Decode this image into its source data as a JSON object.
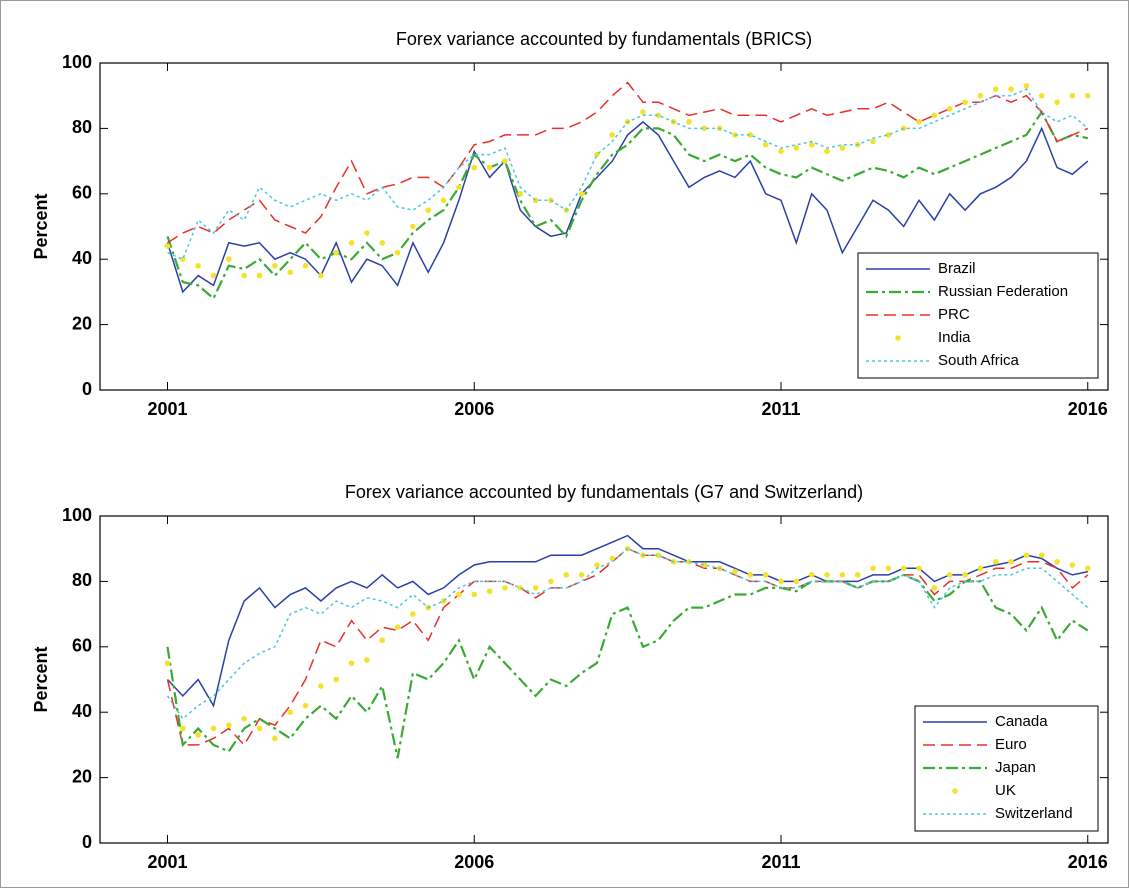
{
  "chart_data": [
    {
      "type": "line",
      "title": "Forex variance accounted by fundamentals (BRICS)",
      "ylabel": "Percent",
      "x": [
        2001,
        2001.25,
        2001.5,
        2001.75,
        2002,
        2002.25,
        2002.5,
        2002.75,
        2003,
        2003.25,
        2003.5,
        2003.75,
        2004,
        2004.25,
        2004.5,
        2004.75,
        2005,
        2005.25,
        2005.5,
        2005.75,
        2006,
        2006.25,
        2006.5,
        2006.75,
        2007,
        2007.25,
        2007.5,
        2007.75,
        2008,
        2008.25,
        2008.5,
        2008.75,
        2009,
        2009.25,
        2009.5,
        2009.75,
        2010,
        2010.25,
        2010.5,
        2010.75,
        2011,
        2011.25,
        2011.5,
        2011.75,
        2012,
        2012.25,
        2012.5,
        2012.75,
        2013,
        2013.25,
        2013.5,
        2013.75,
        2014,
        2014.25,
        2014.5,
        2014.75,
        2015,
        2015.25,
        2015.5,
        2015.75,
        2016
      ],
      "xlim": [
        1999.9,
        2016.33
      ],
      "xticks": [
        2001,
        2006,
        2011,
        2016
      ],
      "ylim": [
        0,
        100
      ],
      "yticks": [
        0,
        20,
        40,
        60,
        80,
        100
      ],
      "legend": "lower right",
      "series": [
        {
          "name": "Brazil",
          "color": "#2b3fa8",
          "linestyle": "solid",
          "values": [
            45,
            30,
            35,
            32,
            45,
            44,
            45,
            40,
            42,
            40,
            35,
            45,
            33,
            40,
            38,
            32,
            45,
            36,
            45,
            58,
            73,
            65,
            70,
            55,
            50,
            47,
            48,
            60,
            65,
            70,
            78,
            82,
            78,
            70,
            62,
            65,
            67,
            65,
            70,
            60,
            58,
            45,
            60,
            55,
            42,
            50,
            58,
            55,
            50,
            58,
            52,
            60,
            55,
            60,
            62,
            65,
            70,
            80,
            68,
            66,
            70
          ]
        },
        {
          "name": "Russian Federation",
          "color": "#3aaa35",
          "linestyle": "dashdot",
          "values": [
            47,
            33,
            32,
            28,
            38,
            37,
            40,
            35,
            40,
            45,
            40,
            42,
            40,
            45,
            40,
            42,
            48,
            52,
            55,
            62,
            72,
            68,
            70,
            58,
            50,
            52,
            47,
            58,
            66,
            72,
            75,
            80,
            80,
            78,
            72,
            70,
            72,
            70,
            72,
            68,
            66,
            65,
            68,
            66,
            64,
            66,
            68,
            67,
            65,
            68,
            66,
            68,
            70,
            72,
            74,
            76,
            78,
            85,
            76,
            78,
            77
          ]
        },
        {
          "name": "PRC",
          "color": "#e8302a",
          "linestyle": "dashed",
          "values": [
            45,
            48,
            50,
            48,
            52,
            55,
            58,
            52,
            50,
            48,
            53,
            62,
            70,
            60,
            62,
            63,
            65,
            65,
            62,
            68,
            75,
            76,
            78,
            78,
            78,
            80,
            80,
            82,
            85,
            90,
            94,
            88,
            88,
            86,
            84,
            85,
            86,
            84,
            84,
            84,
            82,
            84,
            86,
            84,
            85,
            86,
            86,
            88,
            85,
            82,
            84,
            86,
            88,
            88,
            90,
            88,
            90,
            85,
            76,
            78,
            80
          ]
        },
        {
          "name": "India",
          "color": "#f2e32a",
          "linestyle": "none",
          "values": [
            44,
            40,
            38,
            35,
            40,
            35,
            35,
            38,
            36,
            38,
            35,
            42,
            45,
            48,
            45,
            42,
            50,
            55,
            58,
            62,
            68,
            68,
            70,
            60,
            58,
            58,
            55,
            60,
            72,
            78,
            82,
            85,
            84,
            82,
            82,
            80,
            80,
            78,
            78,
            75,
            73,
            74,
            75,
            73,
            74,
            75,
            76,
            78,
            80,
            82,
            84,
            86,
            88,
            90,
            92,
            92,
            93,
            90,
            88,
            90,
            90
          ]
        },
        {
          "name": "South Africa",
          "color": "#4cc8e0",
          "linestyle": "dotted",
          "values": [
            42,
            40,
            52,
            48,
            55,
            52,
            62,
            58,
            56,
            58,
            60,
            58,
            60,
            58,
            62,
            56,
            55,
            58,
            62,
            68,
            72,
            72,
            74,
            62,
            58,
            58,
            55,
            62,
            72,
            76,
            82,
            84,
            84,
            82,
            80,
            80,
            80,
            78,
            78,
            76,
            74,
            75,
            76,
            74,
            75,
            75,
            77,
            78,
            80,
            80,
            82,
            84,
            86,
            88,
            90,
            90,
            92,
            85,
            82,
            84,
            80
          ]
        }
      ]
    },
    {
      "type": "line",
      "title": "Forex variance accounted by fundamentals (G7 and Switzerland)",
      "ylabel": "Percent",
      "x": [
        2001,
        2001.25,
        2001.5,
        2001.75,
        2002,
        2002.25,
        2002.5,
        2002.75,
        2003,
        2003.25,
        2003.5,
        2003.75,
        2004,
        2004.25,
        2004.5,
        2004.75,
        2005,
        2005.25,
        2005.5,
        2005.75,
        2006,
        2006.25,
        2006.5,
        2006.75,
        2007,
        2007.25,
        2007.5,
        2007.75,
        2008,
        2008.25,
        2008.5,
        2008.75,
        2009,
        2009.25,
        2009.5,
        2009.75,
        2010,
        2010.25,
        2010.5,
        2010.75,
        2011,
        2011.25,
        2011.5,
        2011.75,
        2012,
        2012.25,
        2012.5,
        2012.75,
        2013,
        2013.25,
        2013.5,
        2013.75,
        2014,
        2014.25,
        2014.5,
        2014.75,
        2015,
        2015.25,
        2015.5,
        2015.75,
        2016
      ],
      "xlim": [
        1999.9,
        2016.33
      ],
      "xticks": [
        2001,
        2006,
        2011,
        2016
      ],
      "ylim": [
        0,
        100
      ],
      "yticks": [
        0,
        20,
        40,
        60,
        80,
        100
      ],
      "legend": "lower right",
      "series": [
        {
          "name": "Canada",
          "color": "#2b3fa8",
          "linestyle": "solid",
          "values": [
            50,
            45,
            50,
            42,
            62,
            74,
            78,
            72,
            76,
            78,
            74,
            78,
            80,
            78,
            82,
            78,
            80,
            76,
            78,
            82,
            85,
            86,
            86,
            86,
            86,
            88,
            88,
            88,
            90,
            92,
            94,
            90,
            90,
            88,
            86,
            86,
            86,
            84,
            82,
            82,
            80,
            80,
            82,
            80,
            80,
            80,
            82,
            82,
            84,
            84,
            80,
            82,
            82,
            84,
            85,
            86,
            88,
            87,
            84,
            82,
            83
          ]
        },
        {
          "name": "Euro",
          "color": "#e8302a",
          "linestyle": "dashed",
          "values": [
            50,
            30,
            30,
            32,
            35,
            30,
            38,
            36,
            42,
            50,
            62,
            60,
            68,
            62,
            66,
            65,
            68,
            62,
            72,
            76,
            80,
            80,
            80,
            78,
            75,
            78,
            78,
            80,
            82,
            86,
            90,
            88,
            88,
            86,
            86,
            84,
            84,
            82,
            80,
            80,
            78,
            78,
            80,
            80,
            80,
            78,
            80,
            80,
            82,
            82,
            76,
            80,
            80,
            82,
            84,
            84,
            86,
            86,
            84,
            78,
            82
          ]
        },
        {
          "name": "Japan",
          "color": "#3aaa35",
          "linestyle": "dashdot",
          "values": [
            60,
            30,
            35,
            30,
            28,
            35,
            38,
            35,
            32,
            38,
            42,
            38,
            45,
            40,
            48,
            26,
            52,
            50,
            55,
            62,
            50,
            60,
            55,
            50,
            45,
            50,
            48,
            52,
            55,
            70,
            72,
            60,
            62,
            68,
            72,
            72,
            74,
            76,
            76,
            78,
            78,
            77,
            80,
            80,
            80,
            78,
            80,
            80,
            82,
            80,
            74,
            76,
            80,
            80,
            72,
            70,
            65,
            72,
            62,
            68,
            65
          ]
        },
        {
          "name": "UK",
          "color": "#f2e32a",
          "linestyle": "none",
          "values": [
            55,
            35,
            33,
            35,
            36,
            38,
            35,
            32,
            40,
            42,
            48,
            50,
            55,
            56,
            62,
            66,
            70,
            72,
            74,
            76,
            76,
            77,
            78,
            78,
            78,
            80,
            82,
            82,
            85,
            87,
            90,
            88,
            88,
            86,
            86,
            85,
            84,
            83,
            82,
            82,
            80,
            80,
            82,
            82,
            82,
            82,
            84,
            84,
            84,
            84,
            78,
            82,
            82,
            84,
            86,
            86,
            88,
            88,
            86,
            85,
            84
          ]
        },
        {
          "name": "Switzerland",
          "color": "#4cc8e0",
          "linestyle": "dotted",
          "values": [
            45,
            38,
            42,
            45,
            50,
            55,
            58,
            60,
            70,
            72,
            70,
            74,
            72,
            75,
            74,
            72,
            76,
            72,
            74,
            78,
            80,
            80,
            80,
            78,
            76,
            78,
            78,
            80,
            84,
            86,
            90,
            88,
            88,
            86,
            86,
            85,
            84,
            82,
            80,
            80,
            78,
            78,
            80,
            80,
            80,
            78,
            80,
            80,
            82,
            80,
            72,
            78,
            80,
            80,
            82,
            82,
            84,
            84,
            80,
            76,
            72
          ]
        }
      ]
    }
  ]
}
